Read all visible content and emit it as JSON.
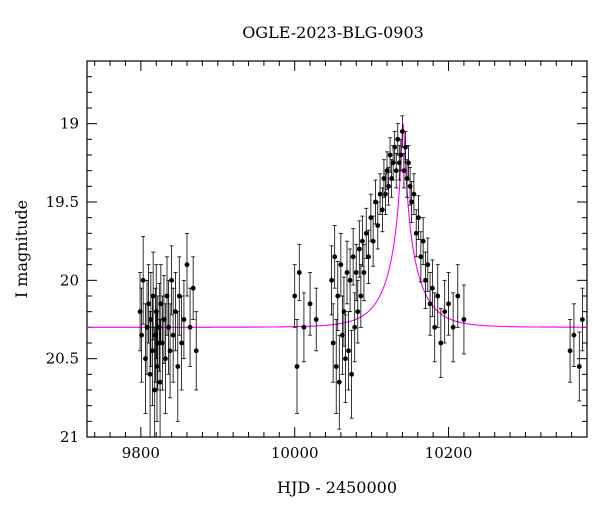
{
  "chart_data": {
    "type": "scatter",
    "title": "OGLE-2023-BLG-0903",
    "xlabel": "HJD - 2450000",
    "ylabel": "I magnitude",
    "xlim": [
      9730,
      10380
    ],
    "ylim": [
      21.0,
      18.6
    ],
    "y_inverted": true,
    "x_ticks": [
      9800,
      10000,
      10200
    ],
    "y_ticks": [
      19,
      19.5,
      20,
      20.5,
      21
    ],
    "x_minor_step": 20,
    "y_minor_step": 0.1,
    "grid": false,
    "legend": "none",
    "colors": {
      "points": "#000000",
      "model": "#ff00ff",
      "axes": "#000000"
    },
    "series": [
      {
        "type": "scatter-with-errorbars",
        "x": [
          9799,
          9801,
          9803,
          9806,
          9808,
          9810,
          9812,
          9813,
          9815,
          9816,
          9818,
          9819,
          9820,
          9821,
          9822,
          9824,
          9825,
          9826,
          9828,
          9830,
          9832,
          9834,
          9836,
          9838,
          9840,
          9842,
          9845,
          9848,
          9850,
          9853,
          9856,
          9860,
          9864,
          9868,
          9872,
          10000,
          10003,
          10006,
          10012,
          10020,
          10028,
          10048,
          10050,
          10052,
          10054,
          10056,
          10058,
          10060,
          10062,
          10064,
          10066,
          10068,
          10070,
          10072,
          10074,
          10076,
          10078,
          10080,
          10082,
          10084,
          10086,
          10088,
          10090,
          10093,
          10096,
          10099,
          10102,
          10105,
          10108,
          10111,
          10114,
          10116,
          10118,
          10120,
          10122,
          10124,
          10126,
          10128,
          10130,
          10132,
          10134,
          10136,
          10138,
          10140,
          10142,
          10144,
          10146,
          10148,
          10150,
          10152,
          10155,
          10158,
          10161,
          10164,
          10167,
          10170,
          10173,
          10176,
          10179,
          10182,
          10186,
          10190,
          10195,
          10200,
          10206,
          10212,
          10220,
          10358,
          10363,
          10370,
          10374
        ],
        "y": [
          20.2,
          20.35,
          20.0,
          20.5,
          20.3,
          20.15,
          20.6,
          20.25,
          20.45,
          20.1,
          20.7,
          20.35,
          20.2,
          20.55,
          20.4,
          20.3,
          20.65,
          20.15,
          20.4,
          20.25,
          20.5,
          20.1,
          20.3,
          20.45,
          20.0,
          20.35,
          20.2,
          20.55,
          20.1,
          20.4,
          20.25,
          19.9,
          20.3,
          20.05,
          20.45,
          20.1,
          20.55,
          19.95,
          20.3,
          20.15,
          20.25,
          20.0,
          20.4,
          19.85,
          20.55,
          20.1,
          20.65,
          19.9,
          20.35,
          20.2,
          20.5,
          19.95,
          20.45,
          20.0,
          20.6,
          19.85,
          20.3,
          19.95,
          20.2,
          19.8,
          20.1,
          19.75,
          19.95,
          19.7,
          19.85,
          19.6,
          19.75,
          19.5,
          19.65,
          19.45,
          19.55,
          19.35,
          19.45,
          19.3,
          19.4,
          19.2,
          19.35,
          19.25,
          19.15,
          19.3,
          19.1,
          19.25,
          19.2,
          19.05,
          19.3,
          19.15,
          19.35,
          19.25,
          19.4,
          19.5,
          19.45,
          19.7,
          19.6,
          19.85,
          19.75,
          20.0,
          19.9,
          20.15,
          20.05,
          20.3,
          20.1,
          20.4,
          20.2,
          20.15,
          20.3,
          20.1,
          20.25,
          20.45,
          20.35,
          20.55,
          20.25
        ],
        "yerr": [
          0.25,
          0.3,
          0.28,
          0.35,
          0.3,
          0.25,
          0.4,
          0.3,
          0.35,
          0.28,
          0.4,
          0.3,
          0.3,
          0.35,
          0.3,
          0.28,
          0.4,
          0.25,
          0.3,
          0.28,
          0.35,
          0.25,
          0.3,
          0.3,
          0.22,
          0.3,
          0.25,
          0.35,
          0.25,
          0.3,
          0.25,
          0.2,
          0.25,
          0.2,
          0.25,
          0.2,
          0.3,
          0.18,
          0.22,
          0.2,
          0.2,
          0.22,
          0.25,
          0.2,
          0.3,
          0.22,
          0.3,
          0.2,
          0.25,
          0.22,
          0.28,
          0.2,
          0.25,
          0.2,
          0.28,
          0.18,
          0.22,
          0.18,
          0.2,
          0.18,
          0.2,
          0.16,
          0.18,
          0.16,
          0.17,
          0.15,
          0.16,
          0.14,
          0.15,
          0.13,
          0.14,
          0.12,
          0.13,
          0.12,
          0.12,
          0.11,
          0.12,
          0.11,
          0.1,
          0.11,
          0.1,
          0.11,
          0.1,
          0.1,
          0.11,
          0.1,
          0.12,
          0.11,
          0.12,
          0.13,
          0.13,
          0.15,
          0.14,
          0.16,
          0.15,
          0.18,
          0.17,
          0.2,
          0.18,
          0.22,
          0.2,
          0.22,
          0.2,
          0.2,
          0.22,
          0.2,
          0.22,
          0.2,
          0.2,
          0.22,
          0.2
        ]
      },
      {
        "type": "model-curve",
        "t0": 10141,
        "u0": 0.05,
        "tE": 40,
        "I_base": 20.3,
        "amplitude": 1.0
      }
    ]
  }
}
